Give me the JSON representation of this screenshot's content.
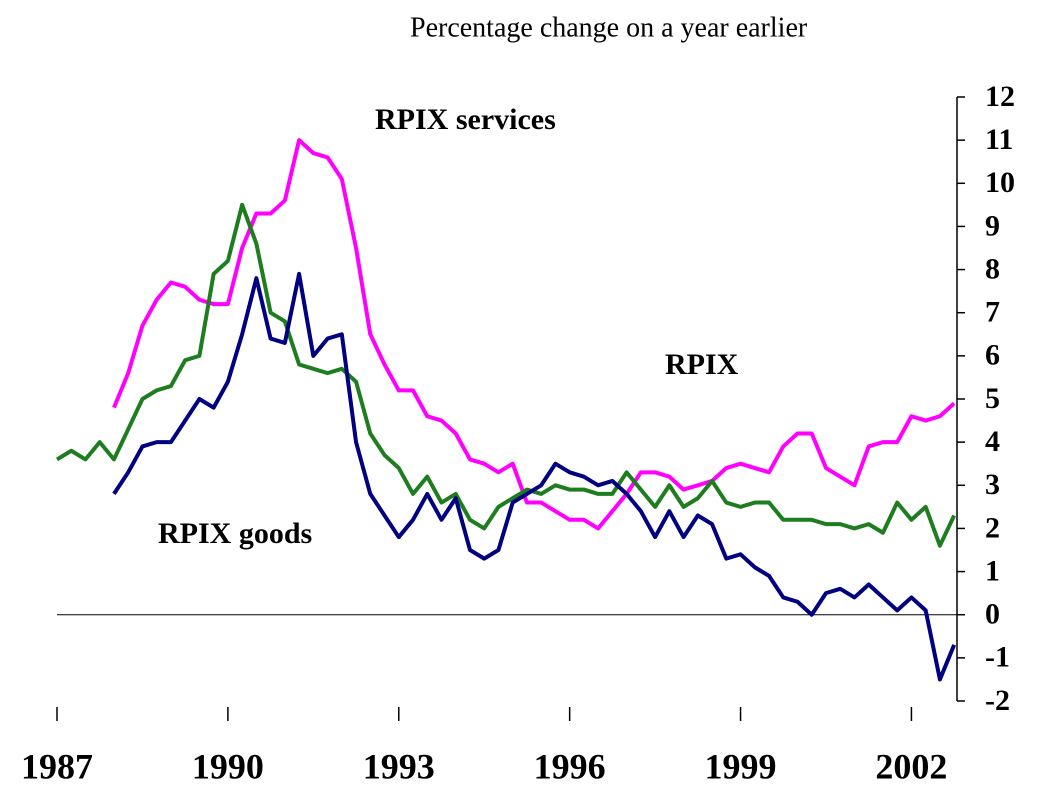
{
  "chart_data": {
    "type": "line",
    "subtitle": "Percentage change on a year earlier",
    "x": [
      1987,
      1987.25,
      1987.5,
      1987.75,
      1988,
      1988.25,
      1988.5,
      1988.75,
      1989,
      1989.25,
      1989.5,
      1989.75,
      1990,
      1990.25,
      1990.5,
      1990.75,
      1991,
      1991.25,
      1991.5,
      1991.75,
      1992,
      1992.25,
      1992.5,
      1992.75,
      1993,
      1993.25,
      1993.5,
      1993.75,
      1994,
      1994.25,
      1994.5,
      1994.75,
      1995,
      1995.25,
      1995.5,
      1995.75,
      1996,
      1996.25,
      1996.5,
      1996.75,
      1997,
      1997.25,
      1997.5,
      1997.75,
      1998,
      1998.25,
      1998.5,
      1998.75,
      1999,
      1999.25,
      1999.5,
      1999.75,
      2000,
      2000.25,
      2000.5,
      2000.75,
      2001,
      2001.25,
      2001.5,
      2001.75,
      2002,
      2002.25,
      2002.5,
      2002.75
    ],
    "series": [
      {
        "name": "RPIX services",
        "color": "#ff00ff",
        "values": [
          null,
          null,
          null,
          null,
          4.8,
          5.6,
          6.7,
          7.3,
          7.7,
          7.6,
          7.3,
          7.2,
          7.2,
          8.5,
          9.3,
          9.3,
          9.6,
          11.0,
          10.7,
          10.6,
          10.1,
          8.5,
          6.5,
          5.8,
          5.2,
          5.2,
          4.6,
          4.5,
          4.2,
          3.6,
          3.5,
          3.3,
          3.5,
          2.6,
          2.6,
          2.4,
          2.2,
          2.2,
          2.0,
          2.4,
          2.8,
          3.3,
          3.3,
          3.2,
          2.9,
          3.0,
          3.1,
          3.4,
          3.5,
          3.4,
          3.3,
          3.9,
          4.2,
          4.2,
          3.4,
          3.2,
          3.0,
          3.9,
          4.0,
          4.0,
          4.6,
          4.5,
          4.6,
          4.9
        ]
      },
      {
        "name": "RPIX",
        "color": "#1e7d1e",
        "values": [
          3.6,
          3.8,
          3.6,
          4.0,
          3.6,
          4.3,
          5.0,
          5.2,
          5.3,
          5.9,
          6.0,
          7.9,
          8.2,
          9.5,
          8.6,
          7.0,
          6.8,
          5.8,
          5.7,
          5.6,
          5.7,
          5.4,
          4.2,
          3.7,
          3.4,
          2.8,
          3.2,
          2.6,
          2.8,
          2.2,
          2.0,
          2.5,
          2.7,
          2.9,
          2.8,
          3.0,
          2.9,
          2.9,
          2.8,
          2.8,
          3.3,
          2.9,
          2.5,
          3.0,
          2.5,
          2.7,
          3.1,
          2.6,
          2.5,
          2.6,
          2.6,
          2.2,
          2.2,
          2.2,
          2.1,
          2.1,
          2.0,
          2.1,
          1.9,
          2.6,
          2.2,
          2.5,
          1.6,
          2.3
        ]
      },
      {
        "name": "RPIX goods",
        "color": "#000080",
        "values": [
          null,
          null,
          null,
          null,
          2.8,
          3.3,
          3.9,
          4.0,
          4.0,
          4.5,
          5.0,
          4.8,
          5.4,
          6.5,
          7.8,
          6.4,
          6.3,
          7.9,
          6.0,
          6.4,
          6.5,
          4.0,
          2.8,
          2.3,
          1.8,
          2.2,
          2.8,
          2.2,
          2.7,
          1.5,
          1.3,
          1.5,
          2.6,
          2.8,
          3.0,
          3.5,
          3.3,
          3.2,
          3.0,
          3.1,
          2.8,
          2.4,
          1.8,
          2.4,
          1.8,
          2.3,
          2.1,
          1.3,
          1.4,
          1.1,
          0.9,
          0.4,
          0.3,
          0.0,
          0.5,
          0.6,
          0.4,
          0.7,
          0.4,
          0.1,
          0.4,
          0.1,
          -1.5,
          -0.7
        ]
      }
    ],
    "xlim": [
      1987,
      2002.8
    ],
    "xticks": [
      1987,
      1990,
      1993,
      1996,
      1999,
      2002
    ],
    "ylim": [
      -2,
      12
    ],
    "yticks": [
      -2,
      -1,
      0,
      1,
      2,
      3,
      4,
      5,
      6,
      7,
      8,
      9,
      10,
      11,
      12
    ],
    "yaxis_side": "right"
  }
}
